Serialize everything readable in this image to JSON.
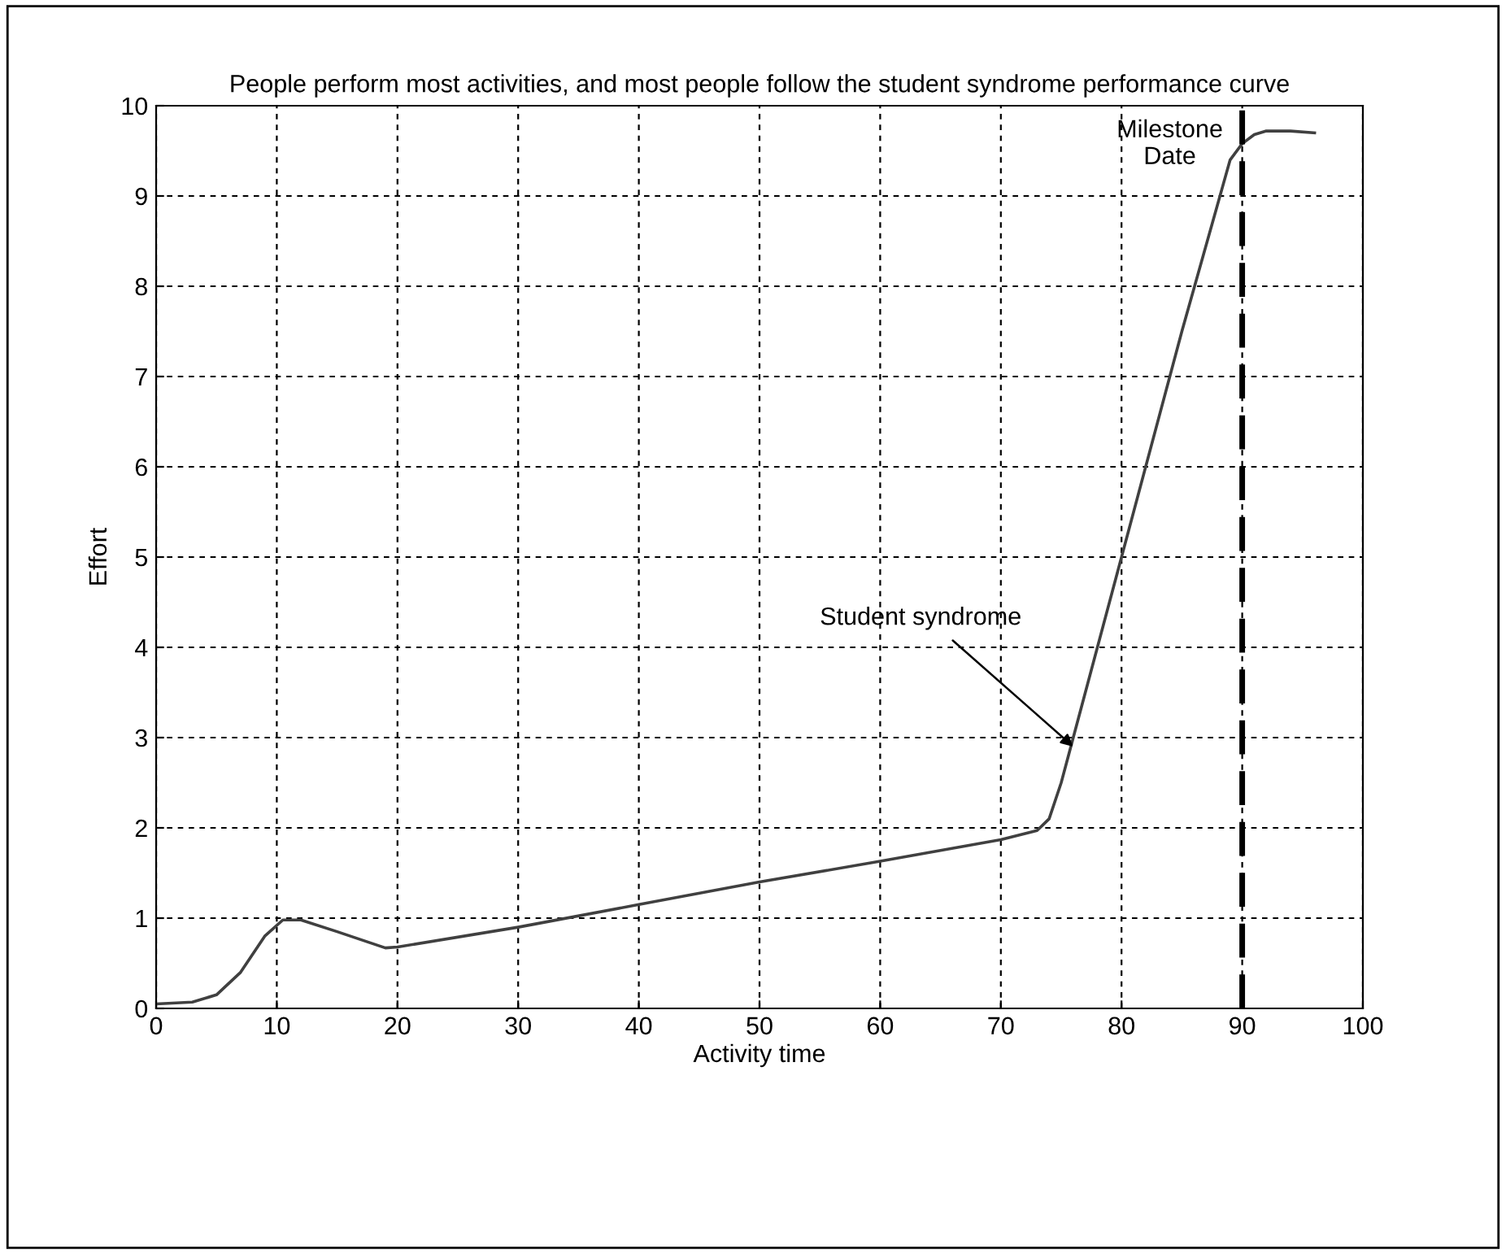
{
  "chart_data": {
    "type": "line",
    "title": "People perform most activities, and most people follow the student syndrome performance curve",
    "xlabel": "Activity time",
    "ylabel": "Effort",
    "x": [
      0,
      3,
      5,
      7,
      9,
      10.5,
      12,
      15,
      19,
      20,
      30,
      40,
      50,
      60,
      70,
      73,
      74,
      75,
      76,
      78,
      80,
      85,
      89,
      90,
      91,
      92,
      94,
      96
    ],
    "series": [
      {
        "color": "#404040",
        "values": [
          0.05,
          0.07,
          0.15,
          0.4,
          0.8,
          0.98,
          0.98,
          0.85,
          0.67,
          0.68,
          0.9,
          1.15,
          1.4,
          1.63,
          1.87,
          1.97,
          2.1,
          2.5,
          3.0,
          4.0,
          5.0,
          7.5,
          9.4,
          9.58,
          9.68,
          9.72,
          9.72,
          9.7
        ]
      }
    ],
    "xlim": [
      0,
      100
    ],
    "ylim": [
      0,
      10
    ],
    "xticks": [
      0,
      10,
      20,
      30,
      40,
      50,
      60,
      70,
      80,
      90,
      100
    ],
    "yticks": [
      0,
      1,
      2,
      3,
      4,
      5,
      6,
      7,
      8,
      9,
      10
    ],
    "grid": true,
    "marker": "none",
    "line_style": "solid",
    "ref_lines": [
      {
        "axis": "x",
        "value": 90,
        "label": "Milestone\nDate",
        "color": "#000000",
        "line_style": "dashed"
      }
    ],
    "annotations": [
      {
        "text": "Student syndrome",
        "x": 76,
        "y": 2.9
      }
    ]
  }
}
